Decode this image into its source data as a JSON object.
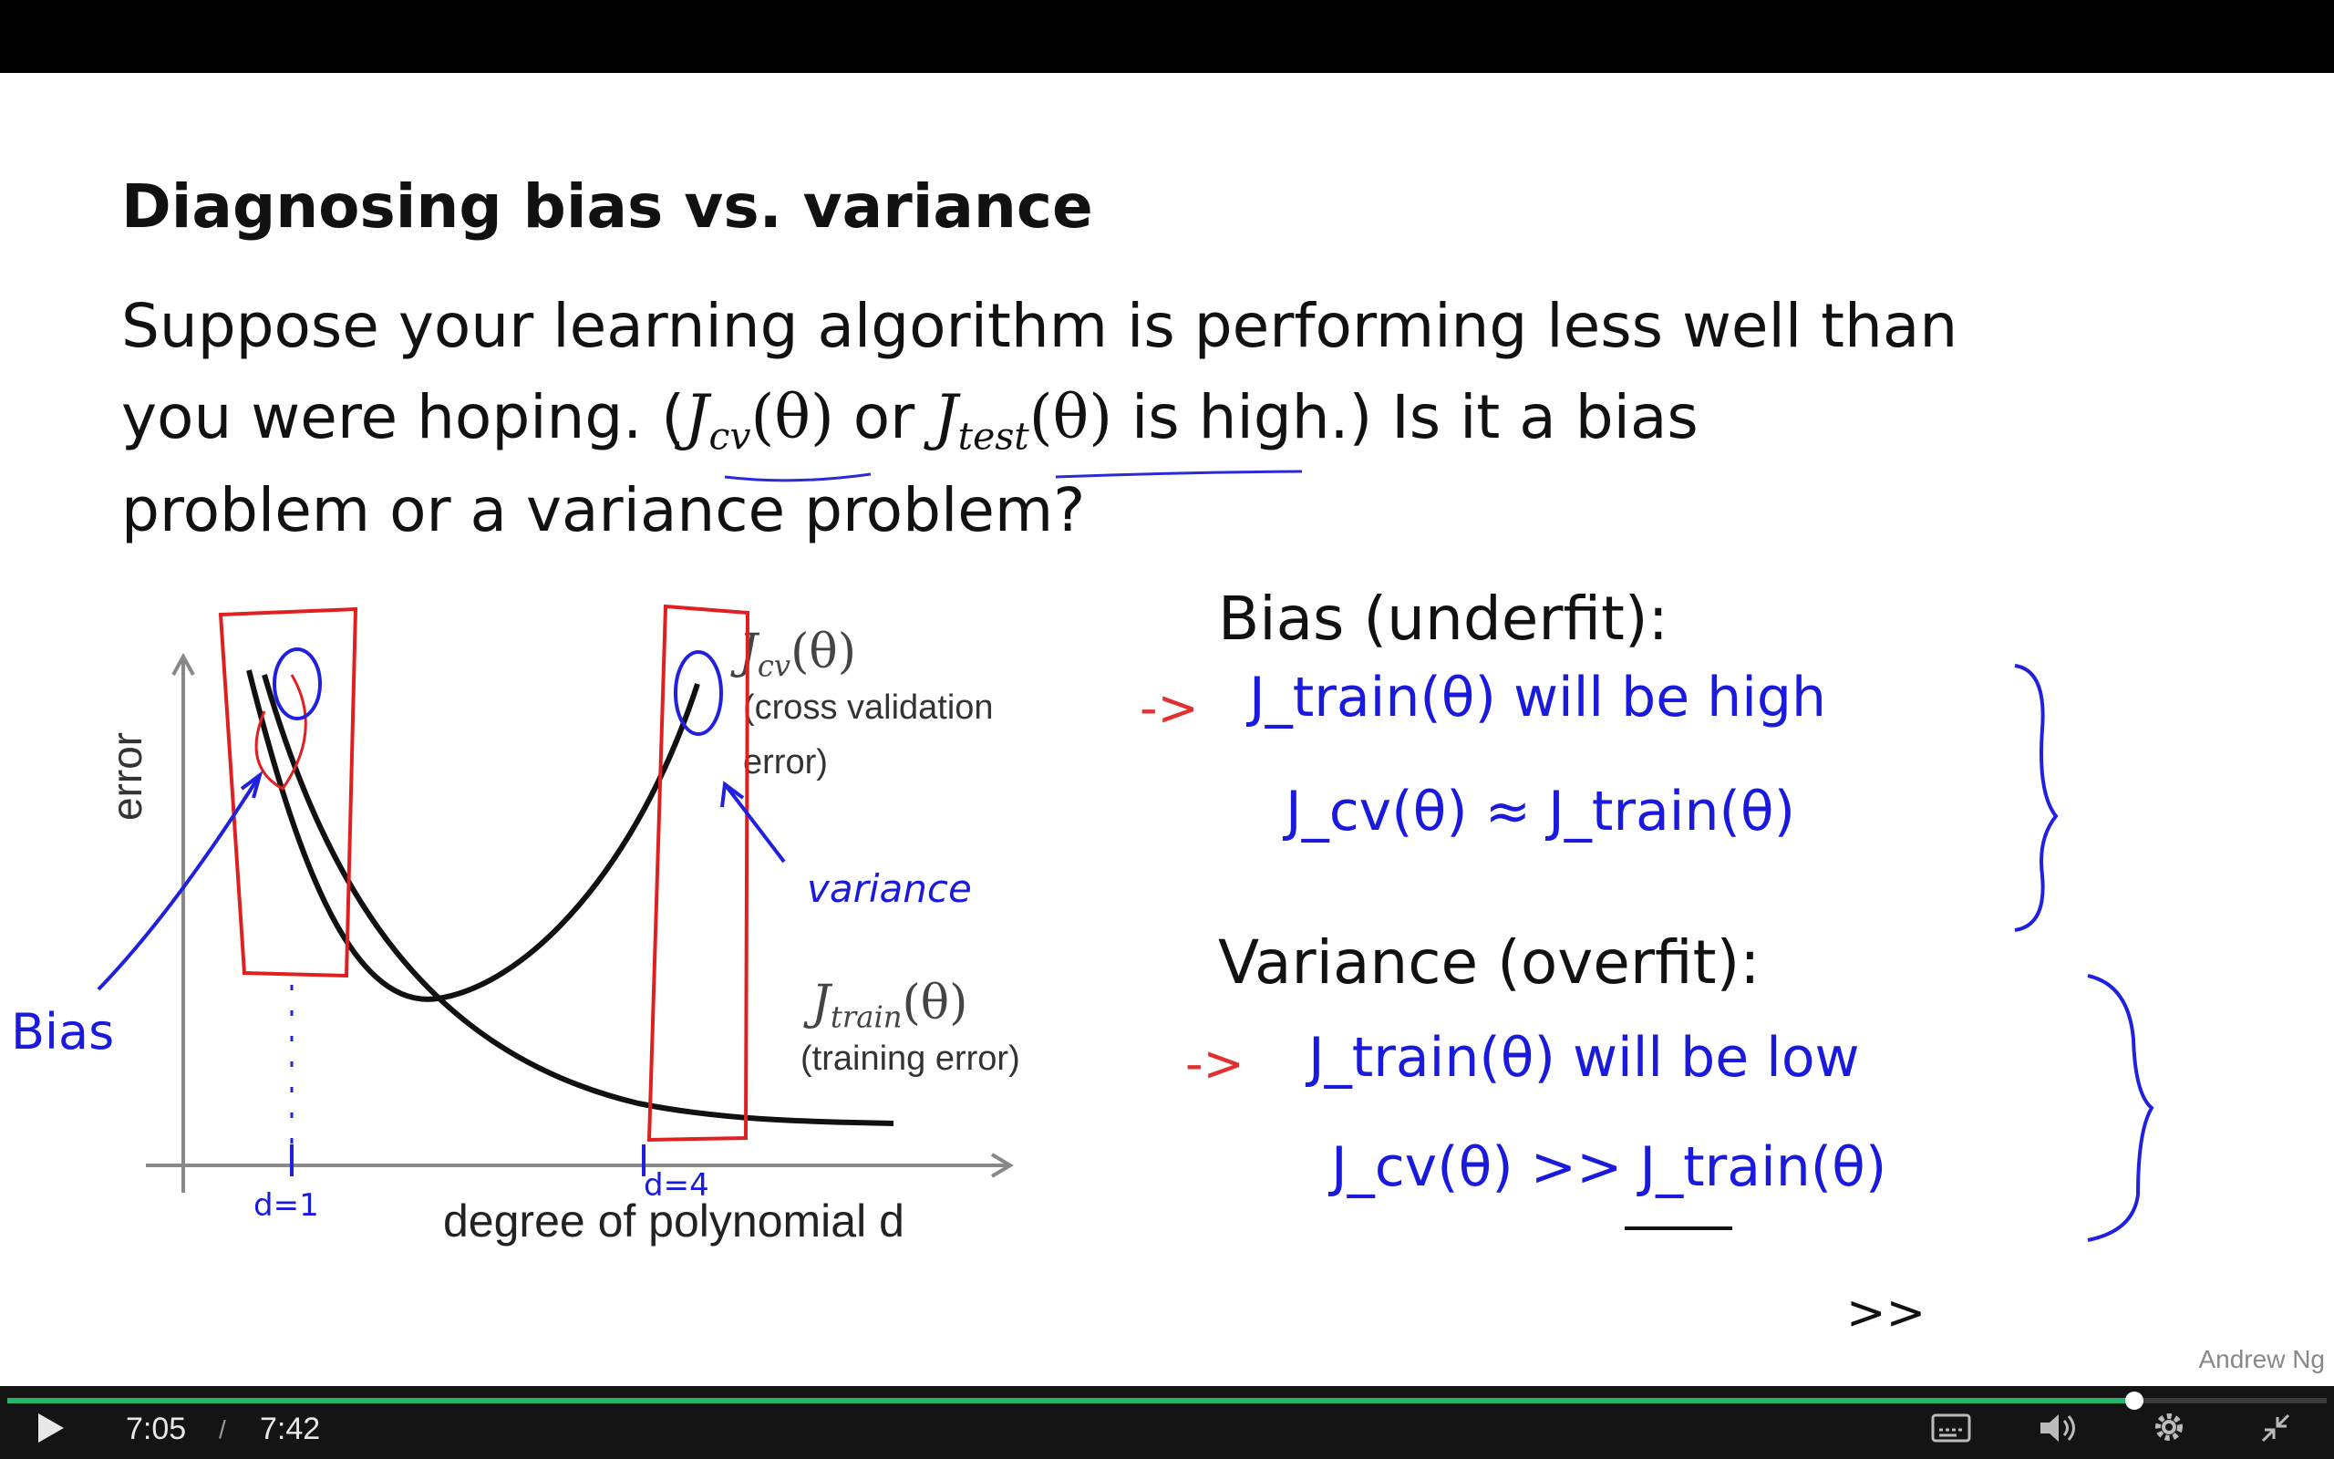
{
  "slide": {
    "title": "Diagnosing bias vs. variance",
    "para_line1": "Suppose your learning algorithm is performing less well than",
    "para_line2_a": "you were hoping. (",
    "para_jcv_J": "J",
    "para_jcv_sub": "cv",
    "para_theta": "(θ)",
    "para_or": " or  ",
    "para_jtest_sub": "test",
    "para_line2_b": " is high.)  Is it a bias",
    "para_line3": "problem or a variance problem?",
    "bias_heading": "Bias (underfit):",
    "variance_heading": "Variance (overfit):",
    "watermark": "Andrew Ng"
  },
  "chart": {
    "ylabel": "error",
    "xlabel": "degree of polynomial d",
    "cv_label_math_J": "J",
    "cv_label_math_sub": "cv",
    "cv_label_theta": "(θ)",
    "cv_label_line1": "(cross validation",
    "cv_label_line2": "error)",
    "train_label_math_J": "J",
    "train_label_math_sub": "train",
    "train_label_theta": "(θ)",
    "train_label_text": "(training error)"
  },
  "chart_data": {
    "type": "line",
    "xlabel": "degree of polynomial d",
    "ylabel": "error",
    "series": [
      {
        "name": "J_cv(θ) (cross validation error)",
        "x": [
          1,
          2,
          3,
          4
        ],
        "values": [
          0.93,
          0.6,
          0.33,
          0.85
        ]
      },
      {
        "name": "J_train(θ) (training error)",
        "x": [
          1,
          2,
          3,
          4
        ],
        "values": [
          0.93,
          0.45,
          0.2,
          0.06
        ]
      }
    ]
  },
  "handwriting": {
    "bias_label": "Bias",
    "variance_label": "variance",
    "d1": "d=1",
    "d4": "d=4",
    "bias_line1": "J_train(θ) will be high",
    "bias_line2": "J_cv(θ) ≈ J_train(θ)",
    "var_line1": "J_train(θ) will be low",
    "var_line2": "J_cv(θ)  >>  J_train(θ)",
    "double_gt": ">>",
    "arrow": "->"
  },
  "player": {
    "current_time": "7:05",
    "separator": "/",
    "duration": "7:42",
    "progress_fraction": 0.917,
    "buffered_fraction": 0.93,
    "accent_color": "#27b36a",
    "icons": [
      "play-icon",
      "captions-icon",
      "volume-icon",
      "settings-icon",
      "exit-fullscreen-icon"
    ]
  }
}
